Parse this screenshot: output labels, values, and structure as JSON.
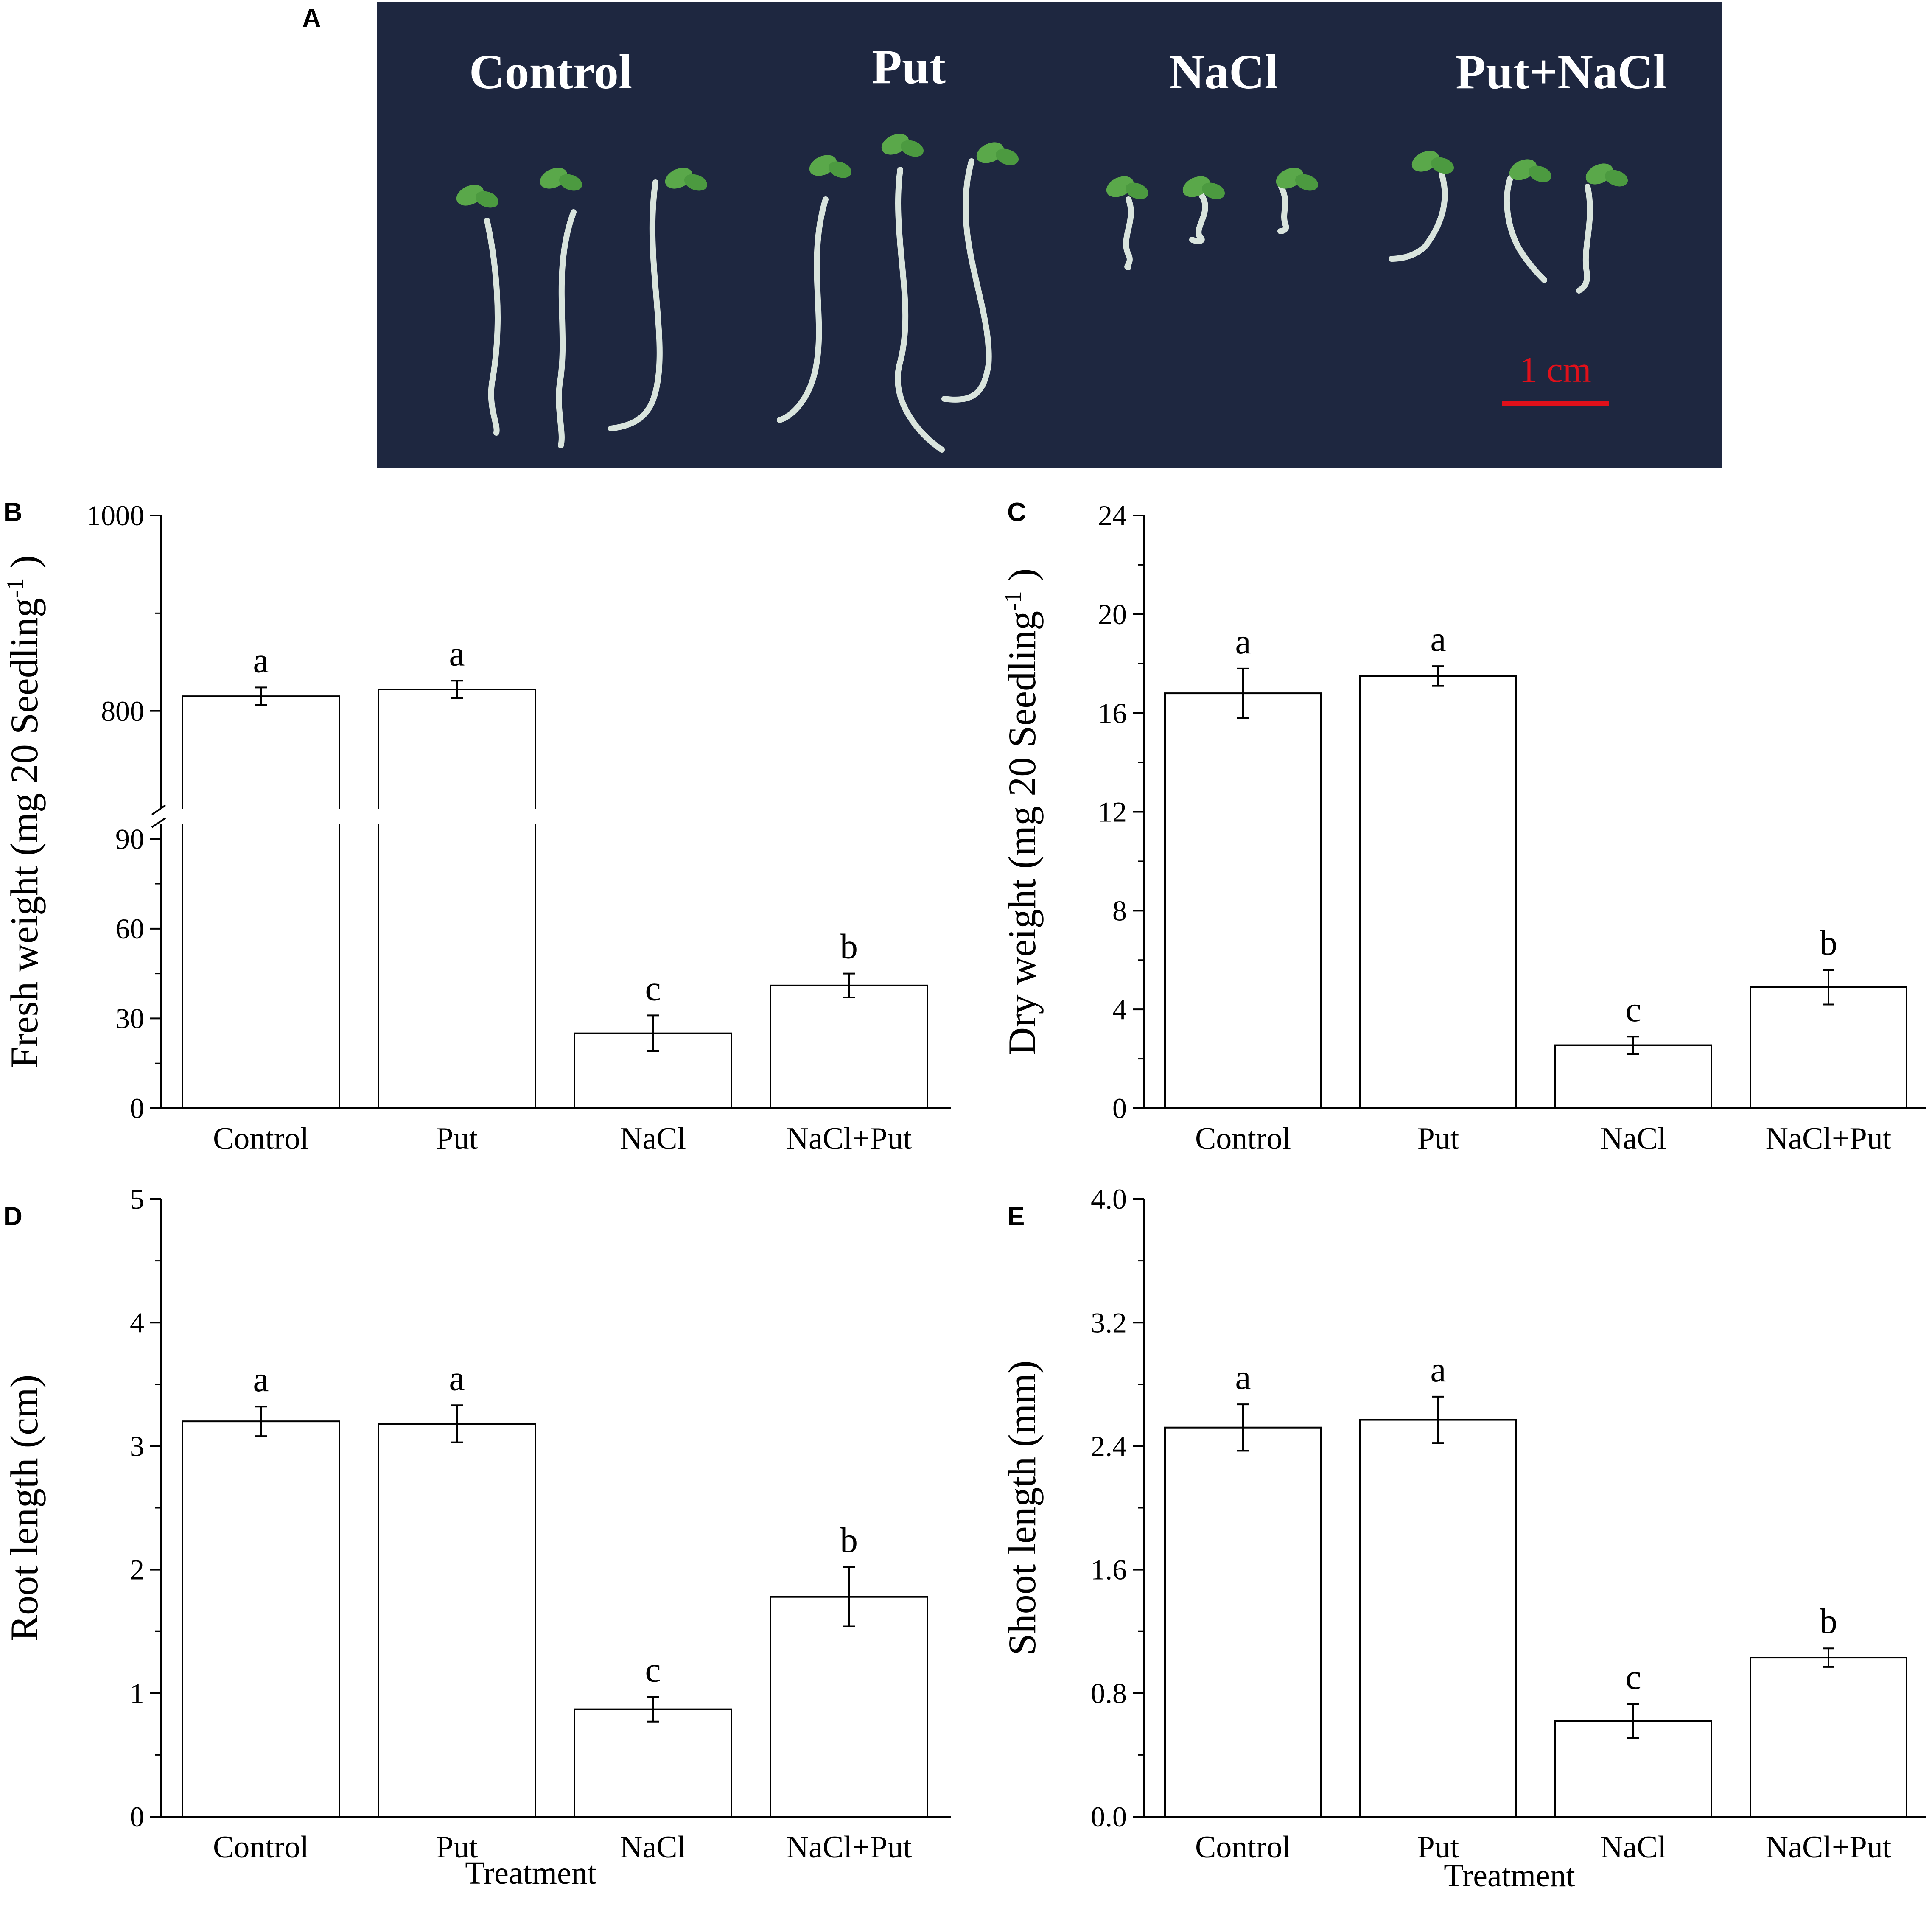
{
  "panel_letters": {
    "a": "A",
    "b": "B",
    "c": "C",
    "d": "D",
    "e": "E"
  },
  "photo": {
    "background": "#1e2740",
    "labels": [
      "Control",
      "Put",
      "NaCl",
      "Put+NaCl"
    ],
    "scale_bar_label": "1 cm",
    "scale_bar_color": "#e0101a"
  },
  "chart_data": [
    {
      "panel": "B",
      "type": "bar",
      "ylabel": "Fresh weight (mg 20 Seedling",
      "ylabel_sup": "-1",
      "ylabel_close": ")",
      "xlabel": "",
      "categories": [
        "Control",
        "Put",
        "NaCl",
        "NaCl+Put"
      ],
      "values": [
        815,
        822,
        25,
        41
      ],
      "errors": [
        9,
        9,
        6,
        4
      ],
      "letters": [
        "a",
        "a",
        "c",
        "b"
      ],
      "axis_break": {
        "lower": [
          0,
          95
        ],
        "upper": [
          700,
          1000
        ]
      },
      "yticks": [
        "0",
        "30",
        "60",
        "90",
        "800",
        "1000"
      ]
    },
    {
      "panel": "C",
      "type": "bar",
      "ylabel": "Dry weight (mg 20 Seedling",
      "ylabel_sup": "-1",
      "ylabel_close": ")",
      "xlabel": "",
      "categories": [
        "Control",
        "Put",
        "NaCl",
        "NaCl+Put"
      ],
      "values": [
        16.8,
        17.5,
        2.55,
        4.9
      ],
      "errors": [
        1.0,
        0.4,
        0.35,
        0.7
      ],
      "letters": [
        "a",
        "a",
        "c",
        "b"
      ],
      "ylim": [
        0,
        24
      ],
      "yticks": [
        "0",
        "4",
        "8",
        "12",
        "16",
        "20",
        "24"
      ]
    },
    {
      "panel": "D",
      "type": "bar",
      "ylabel": "Root length (cm)",
      "xlabel": "Treatment",
      "categories": [
        "Control",
        "Put",
        "NaCl",
        "NaCl+Put"
      ],
      "values": [
        3.2,
        3.18,
        0.87,
        1.78
      ],
      "errors": [
        0.12,
        0.15,
        0.1,
        0.24
      ],
      "letters": [
        "a",
        "a",
        "c",
        "b"
      ],
      "ylim": [
        0,
        5
      ],
      "yticks": [
        "0",
        "1",
        "2",
        "3",
        "4",
        "5"
      ]
    },
    {
      "panel": "E",
      "type": "bar",
      "ylabel": "Shoot length (mm)",
      "xlabel": "Treatment",
      "categories": [
        "Control",
        "Put",
        "NaCl",
        "NaCl+Put"
      ],
      "values": [
        2.52,
        2.57,
        0.62,
        1.03
      ],
      "errors": [
        0.15,
        0.15,
        0.11,
        0.06
      ],
      "letters": [
        "a",
        "a",
        "c",
        "b"
      ],
      "ylim": [
        0,
        4
      ],
      "yticks": [
        "0.0",
        "0.8",
        "1.6",
        "2.4",
        "3.2",
        "4.0"
      ]
    }
  ]
}
